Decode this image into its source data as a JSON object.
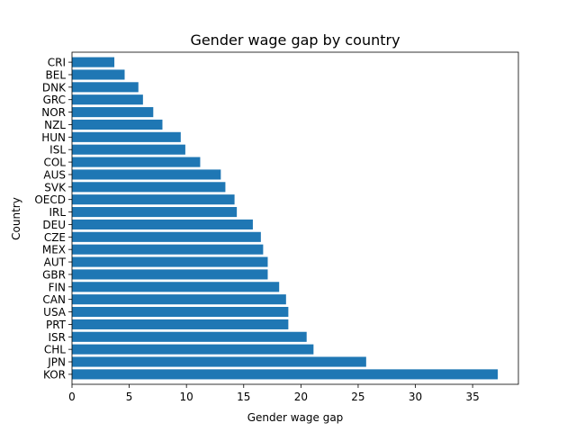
{
  "chart_data": {
    "type": "bar",
    "orientation": "horizontal",
    "title": "Gender wage gap by country",
    "xlabel": "Gender wage gap",
    "ylabel": "Country",
    "xlim": [
      0,
      39
    ],
    "xticks": [
      0,
      5,
      10,
      15,
      20,
      25,
      30,
      35
    ],
    "grid": false,
    "bar_color": "#1f77b4",
    "categories": [
      "KOR",
      "JPN",
      "CHL",
      "ISR",
      "PRT",
      "USA",
      "CAN",
      "FIN",
      "GBR",
      "AUT",
      "MEX",
      "CZE",
      "DEU",
      "IRL",
      "OECD",
      "SVK",
      "AUS",
      "COL",
      "ISL",
      "HUN",
      "NZL",
      "NOR",
      "GRC",
      "DNK",
      "BEL",
      "CRI"
    ],
    "values": [
      37.2,
      25.7,
      21.1,
      20.5,
      18.9,
      18.9,
      18.7,
      18.1,
      17.1,
      17.1,
      16.7,
      16.5,
      15.8,
      14.4,
      14.2,
      13.4,
      13.0,
      11.2,
      9.9,
      9.5,
      7.9,
      7.1,
      6.2,
      5.8,
      4.6,
      3.7
    ]
  }
}
